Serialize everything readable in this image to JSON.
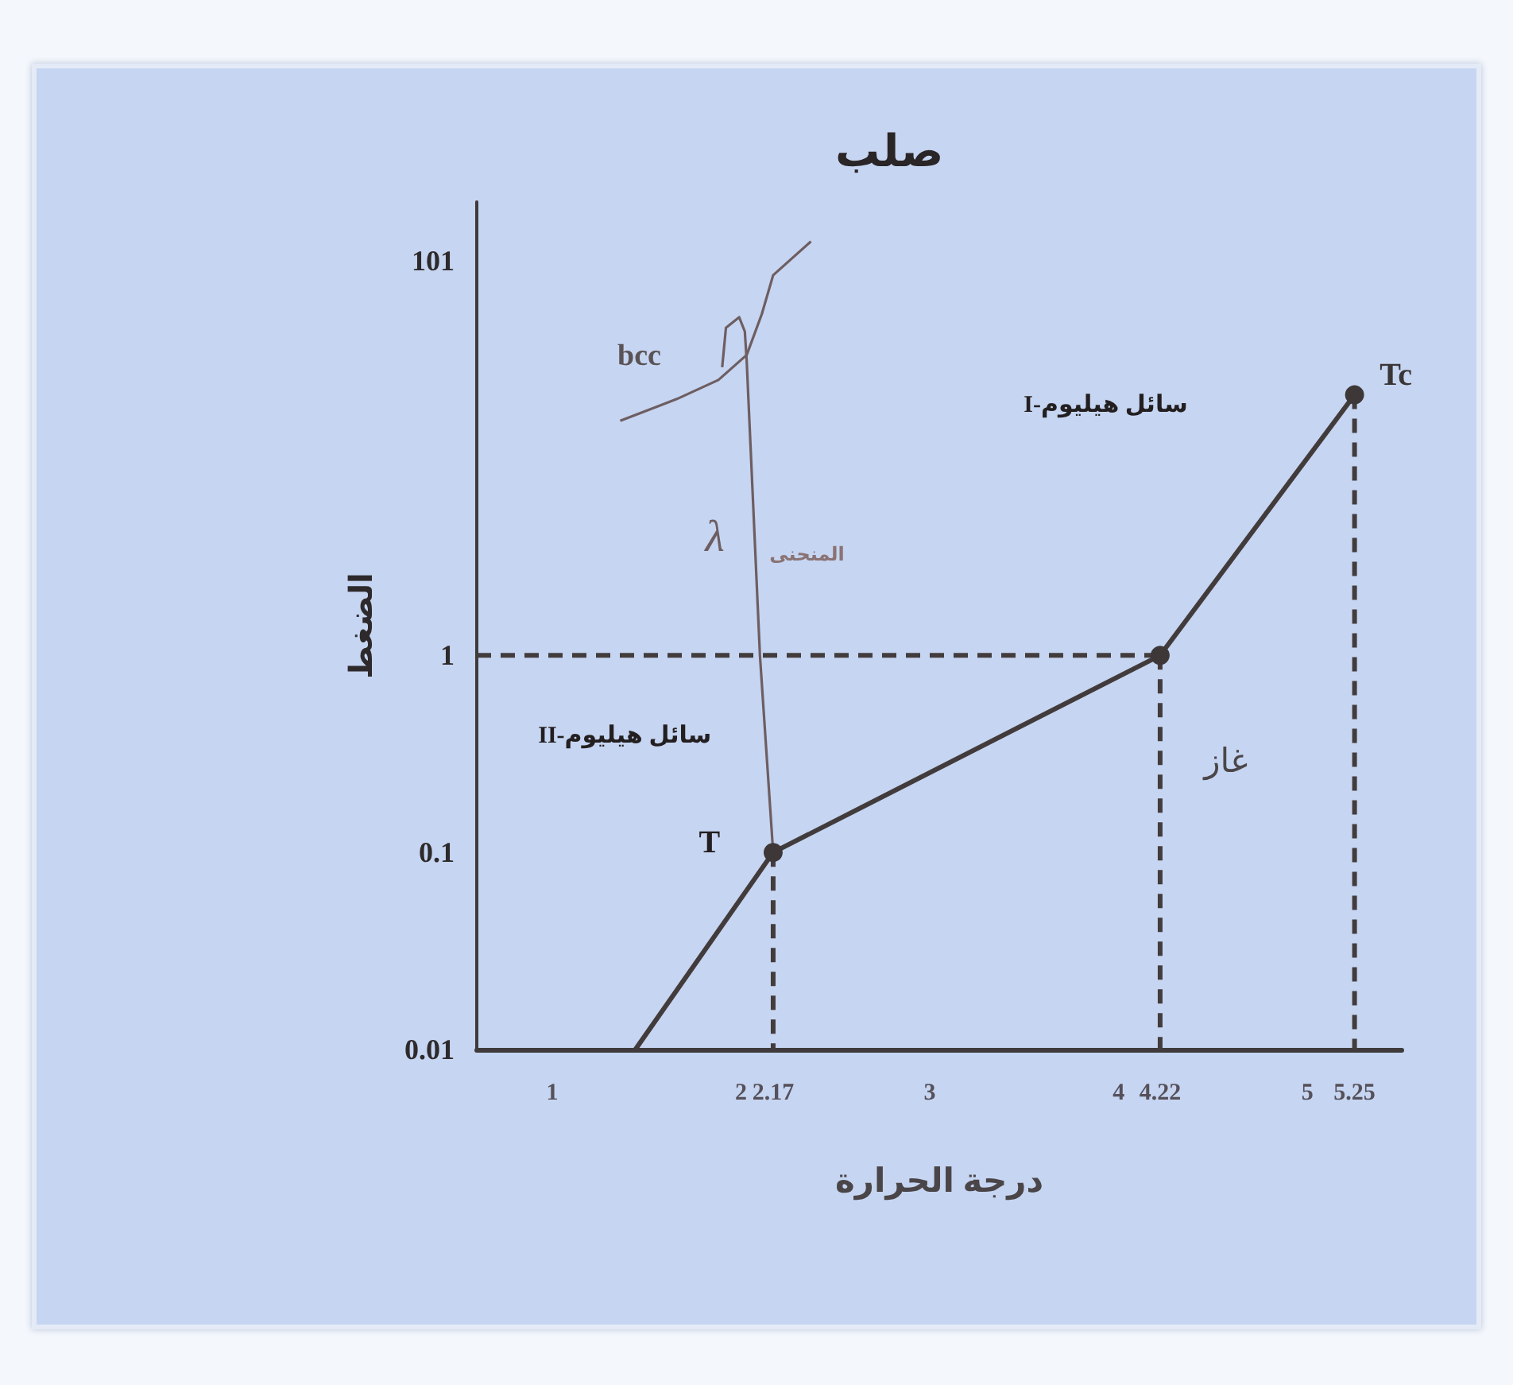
{
  "chart_data": {
    "type": "line",
    "xlabel": "درجة الحرارة",
    "ylabel": "الضغط",
    "annotations": [
      "صلب",
      {
        "text": "bcc",
        "x": 1.36,
        "y": 15.5
      },
      {
        "text": "λ",
        "x": 2.08,
        "y": 3
      },
      {
        "text": "المنحنى",
        "x": 2.08,
        "y": 3
      },
      "سائل هيليوم-I",
      "سائل هيليوم-II",
      "غاز",
      {
        "text": "T",
        "x": 2.17,
        "y": 0.1
      },
      {
        "text": "Tc",
        "x": 5.25,
        "y": 21
      }
    ],
    "xlim": [
      0.6,
      5.5
    ],
    "ylim": [
      0.01,
      200
    ],
    "xticks": [
      1,
      2,
      2.17,
      3,
      4,
      4.22,
      5,
      5.25
    ],
    "yticks": [
      0.01,
      0.1,
      1,
      101
    ],
    "log": "y",
    "grid": false,
    "series": [
      {
        "color": "#423b3c",
        "x": [
          1.44,
          2.17,
          4.22,
          5.25
        ],
        "values": [
          0.01,
          0.1,
          1,
          21
        ],
        "marker": "none",
        "line_style": "solid"
      },
      {
        "type": "scatter",
        "color": "#3d3738",
        "x": [
          2.17,
          4.22,
          5.25
        ],
        "values": [
          0.1,
          1,
          21
        ],
        "marker": "circle"
      },
      {
        "color": "#6d5e62",
        "x": [
          2.17,
          2.1,
          2.03,
          2.02,
          1.99,
          1.92,
          1.9
        ],
        "values": [
          0.1,
          1,
          31,
          44,
          52,
          46,
          29
        ],
        "marker": "none",
        "line_style": "solid"
      },
      {
        "color": "#6d5e62",
        "x": [
          1.36,
          1.66,
          1.88,
          2.03,
          2.11,
          2.17,
          2.37
        ],
        "values": [
          15.5,
          20,
          25,
          33.5,
          54,
          85,
          126
        ],
        "marker": "none",
        "line_style": "solid"
      },
      {
        "color": "#433c3d",
        "x": [
          0.6,
          4.22
        ],
        "values": [
          1,
          1
        ],
        "marker": "none",
        "line_style": "dashed"
      },
      {
        "color": "#433c3d",
        "x": [
          2.17,
          2.17
        ],
        "values": [
          0.1,
          0.01
        ],
        "marker": "none",
        "line_style": "dashed"
      },
      {
        "color": "#433c3d",
        "x": [
          4.22,
          4.22
        ],
        "values": [
          1,
          0.01
        ],
        "marker": "none",
        "line_style": "dashed"
      },
      {
        "color": "#433c3d",
        "x": [
          5.25,
          5.25
        ],
        "values": [
          21,
          0.01
        ],
        "marker": "none",
        "line_style": "dashed"
      }
    ]
  }
}
